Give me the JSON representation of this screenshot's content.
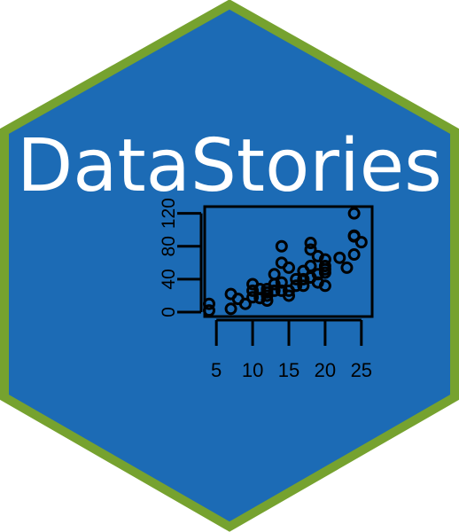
{
  "logo": {
    "title": "DataStories",
    "colors": {
      "hex_fill": "#1c6bb5",
      "hex_border": "#76a22f",
      "title": "#ffffff",
      "plot_ink": "#000000"
    }
  },
  "chart_data": {
    "type": "scatter",
    "title": "",
    "xlabel": "",
    "ylabel": "",
    "xlim": [
      4,
      26
    ],
    "ylim": [
      0,
      125
    ],
    "x_ticks": [
      5,
      10,
      15,
      20,
      25
    ],
    "y_ticks": [
      0,
      40,
      80,
      120
    ],
    "x_tick_labels": [
      "5",
      "10",
      "15",
      "20",
      "25"
    ],
    "y_tick_labels": [
      "0",
      "40",
      "80",
      "120"
    ],
    "grid": false,
    "points": [
      [
        4,
        2
      ],
      [
        4,
        10
      ],
      [
        7,
        4
      ],
      [
        7,
        22
      ],
      [
        8,
        16
      ],
      [
        9,
        10
      ],
      [
        10,
        18
      ],
      [
        10,
        26
      ],
      [
        10,
        34
      ],
      [
        11,
        17
      ],
      [
        11,
        28
      ],
      [
        12,
        14
      ],
      [
        12,
        20
      ],
      [
        12,
        24
      ],
      [
        12,
        28
      ],
      [
        13,
        26
      ],
      [
        13,
        34
      ],
      [
        13,
        46
      ],
      [
        14,
        26
      ],
      [
        14,
        36
      ],
      [
        14,
        60
      ],
      [
        14,
        80
      ],
      [
        15,
        20
      ],
      [
        15,
        26
      ],
      [
        15,
        54
      ],
      [
        16,
        32
      ],
      [
        16,
        40
      ],
      [
        17,
        32
      ],
      [
        17,
        40
      ],
      [
        17,
        50
      ],
      [
        18,
        42
      ],
      [
        18,
        56
      ],
      [
        18,
        76
      ],
      [
        18,
        84
      ],
      [
        19,
        36
      ],
      [
        19,
        46
      ],
      [
        19,
        68
      ],
      [
        20,
        32
      ],
      [
        20,
        48
      ],
      [
        20,
        52
      ],
      [
        20,
        56
      ],
      [
        20,
        64
      ],
      [
        22,
        66
      ],
      [
        23,
        54
      ],
      [
        24,
        70
      ],
      [
        24,
        92
      ],
      [
        24,
        93
      ],
      [
        24,
        120
      ],
      [
        25,
        85
      ]
    ]
  }
}
